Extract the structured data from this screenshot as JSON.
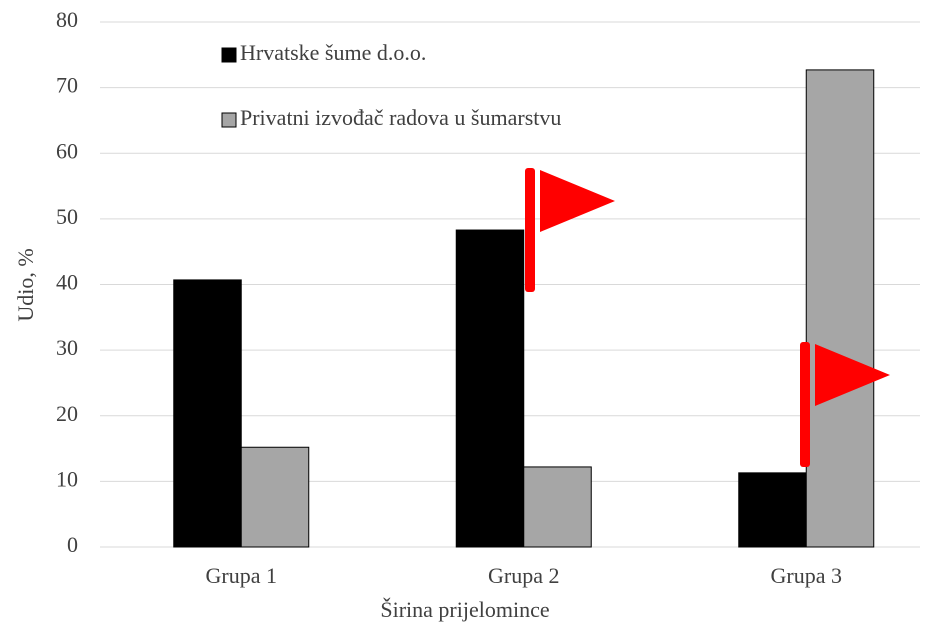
{
  "chart_data": {
    "type": "bar",
    "xlabel": "Širina prijelomince",
    "ylabel": "Udio, %",
    "categories": [
      "Grupa 1",
      "Grupa 2",
      "Grupa 3"
    ],
    "series": [
      {
        "name": "Hrvatske šume d.o.o.",
        "color": "#000000",
        "values": [
          40.7,
          48.3,
          11.3
        ]
      },
      {
        "name": "Privatni izvođač radova u šumarstvu",
        "color": "#a6a6a6",
        "values": [
          15.2,
          12.2,
          72.7
        ]
      }
    ],
    "ylim": [
      0,
      80
    ],
    "yticks": [
      0,
      10,
      20,
      30,
      40,
      50,
      60,
      70,
      80
    ],
    "grid": true
  }
}
